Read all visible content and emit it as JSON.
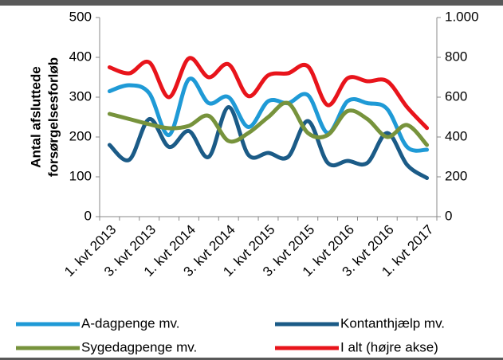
{
  "chart_data": {
    "type": "line",
    "ylabel": [
      "Antal afsluttede",
      "forsørgelsesforløb"
    ],
    "categories": [
      "1. kvt 2013",
      null,
      "3. kvt 2013",
      null,
      "1. kvt 2014",
      null,
      "3. kvt 2014",
      null,
      "1. kvt 2015",
      null,
      "3. kvt 2015",
      null,
      "1. kvt 2016",
      null,
      "3. kvt 2016",
      null,
      "1. kvt 2017"
    ],
    "ylim": [
      0,
      500
    ],
    "yticks": [
      0,
      100,
      200,
      300,
      400,
      500
    ],
    "y2lim": [
      0,
      1000
    ],
    "y2ticks": [
      {
        "value": 0,
        "label": "0"
      },
      {
        "value": 200,
        "label": "200"
      },
      {
        "value": 400,
        "label": "400"
      },
      {
        "value": 600,
        "label": "600"
      },
      {
        "value": 800,
        "label": "800"
      },
      {
        "value": 1000,
        "label": "1.000"
      }
    ],
    "series": [
      {
        "name": "A-dagpenge mv.",
        "color": "#1f9ad6",
        "values": [
          315,
          330,
          310,
          205,
          345,
          285,
          300,
          225,
          290,
          285,
          305,
          210,
          290,
          285,
          270,
          175,
          168
        ]
      },
      {
        "name": "Kontanthjælp mv.",
        "color": "#1b5b87",
        "values": [
          180,
          143,
          245,
          175,
          215,
          150,
          275,
          155,
          160,
          150,
          240,
          135,
          140,
          135,
          210,
          130,
          97
        ]
      },
      {
        "name": "Sygedagpenge mv.",
        "color": "#77933c",
        "values": [
          258,
          245,
          232,
          222,
          228,
          253,
          190,
          210,
          250,
          285,
          210,
          205,
          265,
          245,
          200,
          230,
          180
        ]
      },
      {
        "name": "I alt (højre akse)",
        "color": "#e8141b",
        "axis": "y2",
        "values": [
          750,
          720,
          775,
          600,
          795,
          700,
          765,
          605,
          710,
          720,
          755,
          560,
          695,
          680,
          680,
          550,
          445
        ]
      }
    ],
    "legend": "bottom"
  }
}
